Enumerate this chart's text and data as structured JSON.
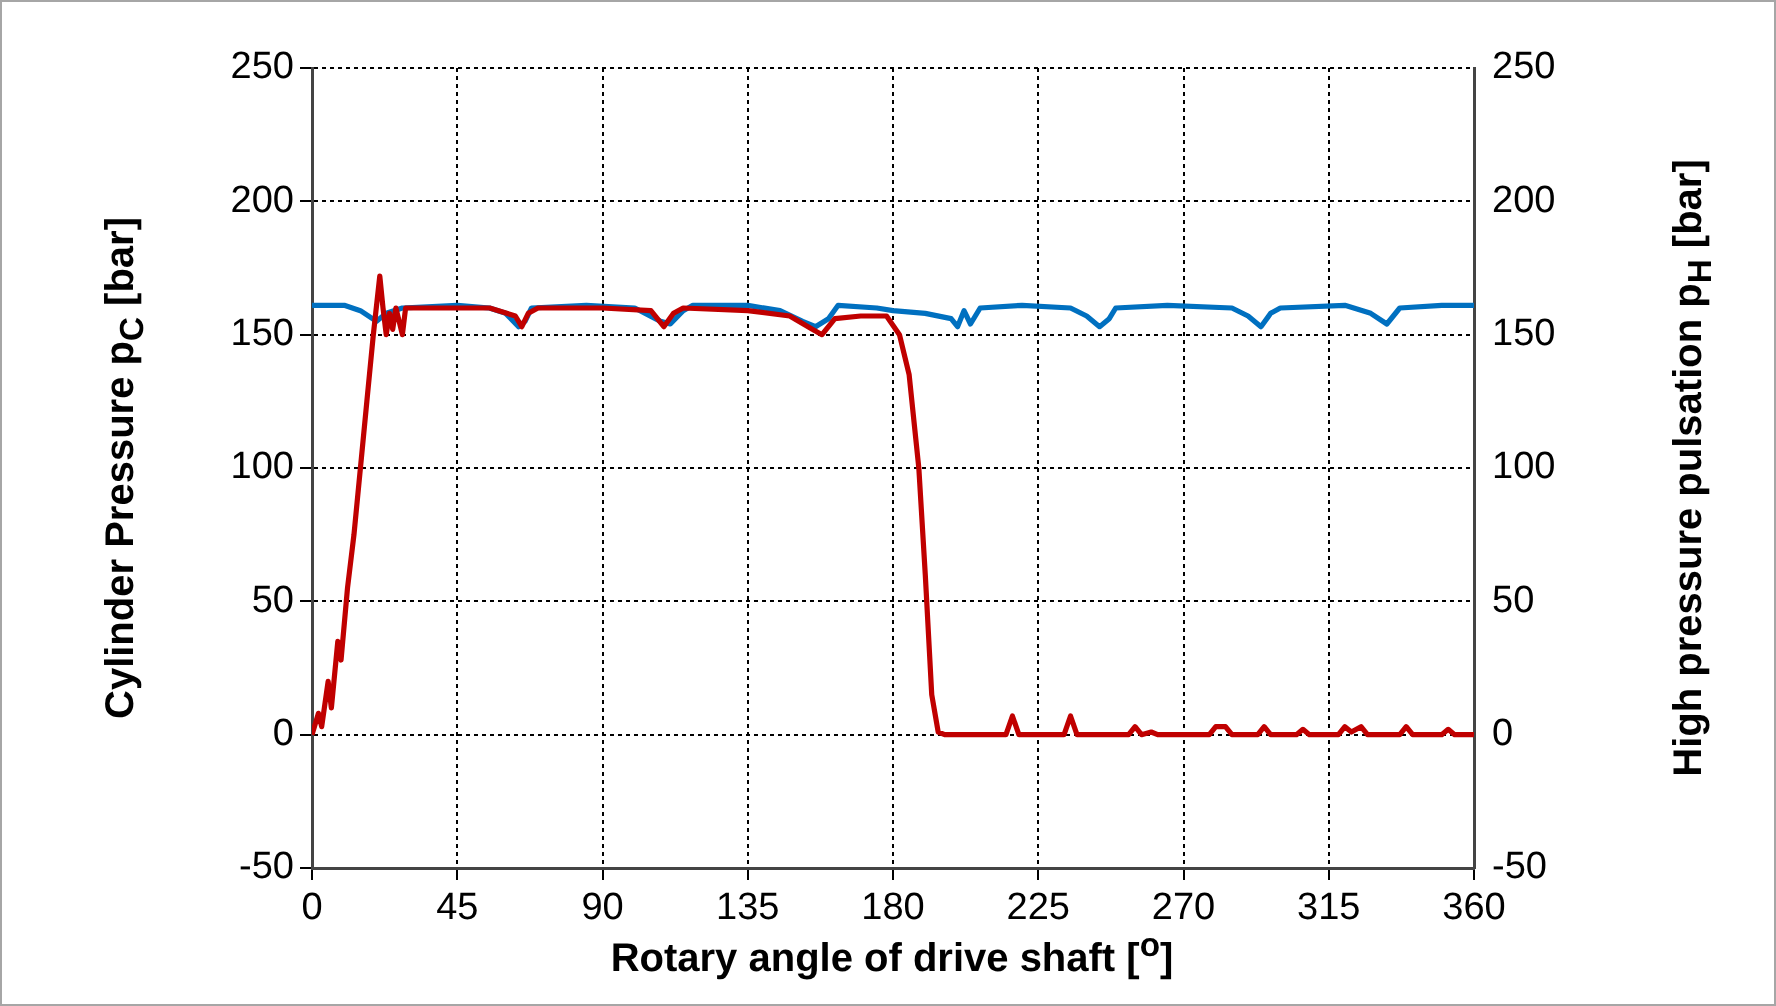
{
  "chart_data": {
    "type": "line",
    "xlabel": "Rotary angle of drive shaft [$^{o}$]",
    "ylabel": "Cylinder Pressure p$_{C}$ [bar]",
    "y2label": "High pressure pulsation p$_{H}$ [bar]",
    "xlim": [
      0,
      360
    ],
    "xticks": [
      0,
      45,
      90,
      135,
      180,
      225,
      270,
      315,
      360
    ],
    "ylim": [
      -50,
      250
    ],
    "yticks": [
      -50,
      0,
      50,
      100,
      150,
      200,
      250
    ],
    "y2lim": [
      -50,
      250
    ],
    "y2ticks": [
      -50,
      0,
      50,
      100,
      150,
      200,
      250
    ],
    "grid": true,
    "marker": "none",
    "line_style": "solid",
    "series": [
      {
        "color": "#c00000",
        "x": [
          0,
          2,
          3,
          5,
          6,
          8,
          9,
          11,
          13,
          15,
          17,
          19,
          21,
          22,
          23,
          24,
          25,
          26,
          28,
          29,
          40,
          55,
          63,
          65,
          67,
          70,
          90,
          105,
          109,
          112,
          115,
          135,
          148,
          155,
          158,
          162,
          170,
          178,
          182,
          185,
          188,
          190,
          192,
          194,
          196,
          215,
          217,
          219,
          233,
          235,
          237,
          253,
          255,
          257,
          260,
          262,
          278,
          280,
          283,
          285,
          293,
          295,
          297,
          305,
          307,
          309,
          318,
          320,
          322,
          325,
          327,
          337,
          339,
          341,
          350,
          352,
          354,
          360
        ],
        "values": [
          0,
          8,
          3,
          20,
          10,
          35,
          28,
          55,
          75,
          100,
          125,
          150,
          172,
          160,
          150,
          158,
          152,
          160,
          150,
          160,
          160,
          160,
          157,
          153,
          158,
          160,
          160,
          159,
          153,
          158,
          160,
          159,
          157,
          152,
          150,
          156,
          157,
          157,
          150,
          135,
          100,
          60,
          15,
          1,
          0,
          0,
          7,
          0,
          0,
          7,
          0,
          0,
          3,
          0,
          1,
          0,
          0,
          3,
          3,
          0,
          0,
          3,
          0,
          0,
          2,
          0,
          0,
          3,
          1,
          3,
          0,
          0,
          3,
          0,
          0,
          2,
          0,
          0
        ]
      },
      {
        "color": "#0070c0",
        "axis": "y2",
        "x": [
          0,
          10,
          15,
          20,
          23,
          28,
          45,
          55,
          60,
          64,
          66,
          68,
          85,
          100,
          108,
          111,
          115,
          118,
          135,
          145,
          152,
          156,
          160,
          163,
          175,
          180,
          190,
          198,
          200,
          202,
          204,
          207,
          220,
          235,
          240,
          244,
          247,
          249,
          265,
          285,
          290,
          294,
          297,
          300,
          320,
          328,
          333,
          335,
          337,
          350,
          360
        ],
        "values": [
          161,
          161,
          159,
          155,
          158,
          160,
          161,
          160,
          158,
          153,
          155,
          160,
          161,
          160,
          155,
          154,
          159,
          161,
          161,
          159,
          155,
          153,
          156,
          161,
          160,
          159,
          158,
          156,
          153,
          159,
          154,
          160,
          161,
          160,
          157,
          153,
          156,
          160,
          161,
          160,
          157,
          153,
          158,
          160,
          161,
          158,
          154,
          157,
          160,
          161,
          161
        ]
      }
    ]
  }
}
